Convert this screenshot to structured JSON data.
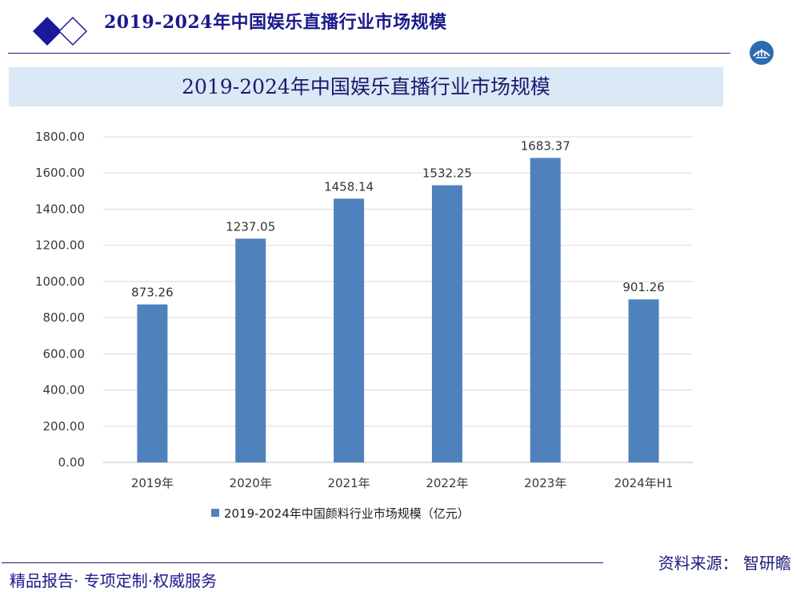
{
  "header": {
    "title": "2019-2024年中国娱乐直播行业市场规模"
  },
  "chart_data": {
    "type": "bar",
    "title": "2019-2024年中国娱乐直播行业市场规模",
    "categories": [
      "2019年",
      "2020年",
      "2021年",
      "2022年",
      "2023年",
      "2024年H1"
    ],
    "series": [
      {
        "name": "2019-2024年中国颜料行业市场规模（亿元）",
        "values": [
          873.26,
          1237.05,
          1458.14,
          1532.25,
          1683.37,
          901.26
        ],
        "labels": [
          "873.26",
          "1237.05",
          "1458.14",
          "1532.25",
          "1683.37",
          "901.26"
        ]
      }
    ],
    "xlabel": "",
    "ylabel": "",
    "ylim": [
      0,
      1800
    ],
    "yticks": [
      "0.00",
      "200.00",
      "400.00",
      "600.00",
      "800.00",
      "1000.00",
      "1200.00",
      "1400.00",
      "1600.00",
      "1800.00"
    ],
    "grid": true,
    "legend_position": "bottom",
    "bar_color": "#4f81bd"
  },
  "footer": {
    "left_text": "精品报告· 专项定制·权威服务",
    "source_text": "资料来源：  智研瞻"
  },
  "colors": {
    "accent": "#1a1a8c",
    "title_band": "#dbe8f6",
    "bar": "#4f81bd"
  }
}
